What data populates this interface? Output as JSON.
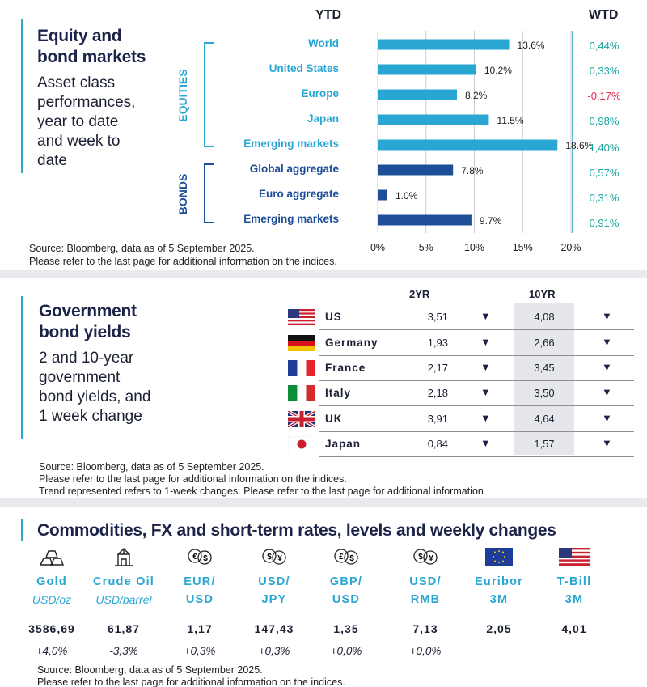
{
  "colors": {
    "equity": "#2aa6d3",
    "bond": "#1f4e99",
    "positive": "#1aa7a0",
    "negative": "#e0294b",
    "title": "#1c2348"
  },
  "section1": {
    "title_line1": "Equity and",
    "title_line2": "bond markets",
    "subtitle": [
      "Asset class",
      "performances,",
      "year to date",
      "and week to",
      "date"
    ],
    "ytd_header": "YTD",
    "wtd_header": "WTD",
    "group_equities": "EQUITIES",
    "group_bonds": "BONDS",
    "source_line1": "Source: Bloomberg, data as of 5 September 2025.",
    "source_line2": "Please refer to the last page for additional information on the indices."
  },
  "chart_data": {
    "type": "bar",
    "orientation": "horizontal",
    "title": "YTD",
    "categories": [
      "World",
      "United States",
      "Europe",
      "Japan",
      "Emerging  markets",
      "Global aggregate",
      "Euro aggregate",
      "Emerging  markets"
    ],
    "groups": [
      "equities",
      "equities",
      "equities",
      "equities",
      "equities",
      "bonds",
      "bonds",
      "bonds"
    ],
    "values": [
      13.6,
      10.2,
      8.2,
      11.5,
      18.6,
      7.8,
      1.0,
      9.7
    ],
    "value_labels": [
      "13.6%",
      "10.2%",
      "8.2%",
      "11.5%",
      "18.6%",
      "7.8%",
      "1.0%",
      "9.7%"
    ],
    "wtd_labels": [
      "0,44%",
      "0,33%",
      "-0,17%",
      "0,98%",
      "1,40%",
      "0,57%",
      "0,31%",
      "0,91%"
    ],
    "wtd_values": [
      0.44,
      0.33,
      -0.17,
      0.98,
      1.4,
      0.57,
      0.31,
      0.91
    ],
    "xlim": [
      0,
      20
    ],
    "xticks": [
      "0%",
      "5%",
      "10%",
      "15%",
      "20%"
    ],
    "grid": true
  },
  "section2": {
    "title_line1": "Government",
    "title_line2": "bond yields",
    "subtitle": [
      "2 and 10-year",
      "government",
      "bond yields, and",
      "1 week change"
    ],
    "header_2yr": "2YR",
    "header_10yr": "10YR",
    "rows": [
      {
        "country": "US",
        "y2": "3,51",
        "a2": "▼",
        "y10": "4,08",
        "a10": "▼"
      },
      {
        "country": "Germany",
        "y2": "1,93",
        "a2": "▼",
        "y10": "2,66",
        "a10": "▼"
      },
      {
        "country": "France",
        "y2": "2,17",
        "a2": "▼",
        "y10": "3,45",
        "a10": "▼"
      },
      {
        "country": "Italy",
        "y2": "2,18",
        "a2": "▼",
        "y10": "3,50",
        "a10": "▼"
      },
      {
        "country": "UK",
        "y2": "3,91",
        "a2": "▼",
        "y10": "4,64",
        "a10": "▼"
      },
      {
        "country": "Japan",
        "y2": "0,84",
        "a2": "▼",
        "y10": "1,57",
        "a10": "▼"
      }
    ],
    "source_line1": "Source: Bloomberg, data as of  5 September 2025.",
    "source_line2": "Please refer to the last page for additional information on the indices.",
    "source_line3": "Trend represented refers to 1-week changes. Please refer to the last page for additional information"
  },
  "section3": {
    "title": "Commodities, FX and short-term rates, levels and weekly changes",
    "items": [
      {
        "name1": "Gold",
        "name2": "",
        "unit": "USD/oz",
        "level": "3586,69",
        "change": "+4,0%"
      },
      {
        "name1": "Crude Oil",
        "name2": "",
        "unit": "USD/barrel",
        "level": "61,87",
        "change": "-3,3%"
      },
      {
        "name1": "EUR/",
        "name2": "USD",
        "unit": "",
        "level": "1,17",
        "change": "+0,3%"
      },
      {
        "name1": "USD/",
        "name2": "JPY",
        "unit": "",
        "level": "147,43",
        "change": "+0,3%"
      },
      {
        "name1": "GBP/",
        "name2": "USD",
        "unit": "",
        "level": "1,35",
        "change": "+0,0%"
      },
      {
        "name1": "USD/",
        "name2": "RMB",
        "unit": "",
        "level": "7,13",
        "change": "+0,0%"
      },
      {
        "name1": "Euribor",
        "name2": "3M",
        "unit": "",
        "level": "2,05",
        "change": ""
      },
      {
        "name1": "T-Bill",
        "name2": "3M",
        "unit": "",
        "level": "4,01",
        "change": ""
      }
    ],
    "icons": [
      "gold-bars-icon",
      "oil-derrick-icon",
      "euro-dollar-exchange-icon",
      "dollar-yen-exchange-icon",
      "pound-dollar-exchange-icon",
      "dollar-yuan-exchange-icon",
      "eu-flag-icon",
      "us-flag-icon"
    ],
    "source_line1": "Source: Bloomberg, data as of 5 September 2025.",
    "source_line2": "Please refer to the last page for additional information on the indices."
  }
}
